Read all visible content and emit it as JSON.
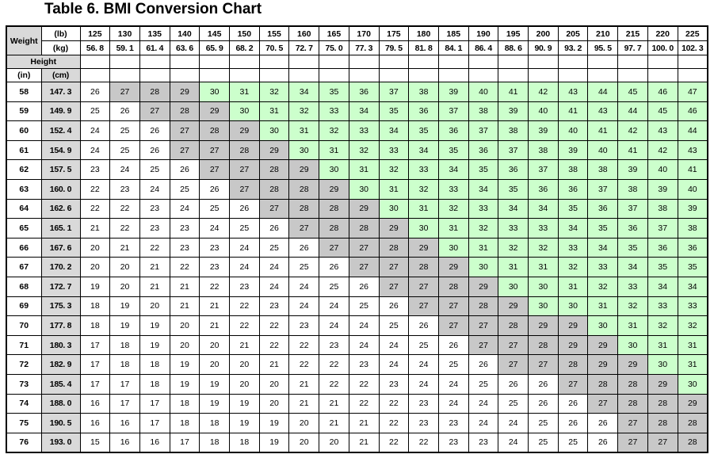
{
  "title": "Table 6. BMI Conversion Chart",
  "header": {
    "weight_label": "Weight",
    "lb_unit": "(lb)",
    "kg_unit": "(kg)",
    "height_label": "Height",
    "in_unit": "(in)",
    "cm_unit": "(cm)"
  },
  "weights_lb": [
    "125",
    "130",
    "135",
    "140",
    "145",
    "150",
    "155",
    "160",
    "165",
    "170",
    "175",
    "180",
    "185",
    "190",
    "195",
    "200",
    "205",
    "210",
    "215",
    "220",
    "225"
  ],
  "weights_kg": [
    "56. 8",
    "59. 1",
    "61. 4",
    "63. 6",
    "65. 9",
    "68. 2",
    "70. 5",
    "72. 7",
    "75. 0",
    "77. 3",
    "79. 5",
    "81. 8",
    "84. 1",
    "86. 4",
    "88. 6",
    "90. 9",
    "93. 2",
    "95. 5",
    "97. 7",
    "100. 0",
    "102. 3"
  ],
  "category_colors": {
    "normal": "#ffffff",
    "overweight": "#c8c8c8",
    "obese": "#ccffcc"
  },
  "rows": [
    {
      "in": "58",
      "cm": "147. 3",
      "values": [
        26,
        27,
        28,
        29,
        30,
        31,
        32,
        34,
        35,
        36,
        37,
        38,
        39,
        40,
        41,
        42,
        43,
        44,
        45,
        46,
        47
      ]
    },
    {
      "in": "59",
      "cm": "149. 9",
      "values": [
        25,
        26,
        27,
        28,
        29,
        30,
        31,
        32,
        33,
        34,
        35,
        36,
        37,
        38,
        39,
        40,
        41,
        43,
        44,
        45,
        46
      ]
    },
    {
      "in": "60",
      "cm": "152. 4",
      "values": [
        24,
        25,
        26,
        27,
        28,
        29,
        30,
        31,
        32,
        33,
        34,
        35,
        36,
        37,
        38,
        39,
        40,
        41,
        42,
        43,
        44
      ]
    },
    {
      "in": "61",
      "cm": "154. 9",
      "values": [
        24,
        25,
        26,
        27,
        27,
        28,
        29,
        30,
        31,
        32,
        33,
        34,
        35,
        36,
        37,
        38,
        39,
        40,
        41,
        42,
        43
      ]
    },
    {
      "in": "62",
      "cm": "157. 5",
      "values": [
        23,
        24,
        25,
        26,
        27,
        27,
        28,
        29,
        30,
        31,
        32,
        33,
        34,
        35,
        36,
        37,
        38,
        38,
        39,
        40,
        41
      ]
    },
    {
      "in": "63",
      "cm": "160. 0",
      "values": [
        22,
        23,
        24,
        25,
        26,
        27,
        28,
        28,
        29,
        30,
        31,
        32,
        33,
        34,
        35,
        36,
        36,
        37,
        38,
        39,
        40
      ]
    },
    {
      "in": "64",
      "cm": "162. 6",
      "values": [
        22,
        22,
        23,
        24,
        25,
        26,
        27,
        28,
        28,
        29,
        30,
        31,
        32,
        33,
        34,
        34,
        35,
        36,
        37,
        38,
        39
      ]
    },
    {
      "in": "65",
      "cm": "165. 1",
      "values": [
        21,
        22,
        23,
        23,
        24,
        25,
        26,
        27,
        28,
        28,
        29,
        30,
        31,
        32,
        33,
        33,
        34,
        35,
        36,
        37,
        38
      ]
    },
    {
      "in": "66",
      "cm": "167. 6",
      "values": [
        20,
        21,
        22,
        23,
        23,
        24,
        25,
        26,
        27,
        27,
        28,
        29,
        30,
        31,
        32,
        32,
        33,
        34,
        35,
        36,
        36
      ]
    },
    {
      "in": "67",
      "cm": "170. 2",
      "values": [
        20,
        20,
        21,
        22,
        23,
        24,
        24,
        25,
        26,
        27,
        27,
        28,
        29,
        30,
        31,
        31,
        32,
        33,
        34,
        35,
        35
      ]
    },
    {
      "in": "68",
      "cm": "172. 7",
      "values": [
        19,
        20,
        21,
        21,
        22,
        23,
        24,
        24,
        25,
        26,
        27,
        27,
        28,
        29,
        30,
        30,
        31,
        32,
        33,
        34,
        34
      ]
    },
    {
      "in": "69",
      "cm": "175. 3",
      "values": [
        18,
        19,
        20,
        21,
        21,
        22,
        23,
        24,
        24,
        25,
        26,
        27,
        27,
        28,
        29,
        30,
        30,
        31,
        32,
        33,
        33
      ]
    },
    {
      "in": "70",
      "cm": "177. 8",
      "values": [
        18,
        19,
        19,
        20,
        21,
        22,
        22,
        23,
        24,
        24,
        25,
        26,
        27,
        27,
        28,
        29,
        29,
        30,
        31,
        32,
        32
      ]
    },
    {
      "in": "71",
      "cm": "180. 3",
      "values": [
        17,
        18,
        19,
        20,
        20,
        21,
        22,
        22,
        23,
        24,
        24,
        25,
        26,
        27,
        27,
        28,
        29,
        29,
        30,
        31,
        31
      ]
    },
    {
      "in": "72",
      "cm": "182. 9",
      "values": [
        17,
        18,
        18,
        19,
        20,
        20,
        21,
        22,
        22,
        23,
        24,
        24,
        25,
        26,
        27,
        27,
        28,
        29,
        29,
        30,
        31
      ]
    },
    {
      "in": "73",
      "cm": "185. 4",
      "values": [
        17,
        17,
        18,
        19,
        19,
        20,
        20,
        21,
        22,
        22,
        23,
        24,
        24,
        25,
        26,
        26,
        27,
        28,
        28,
        29,
        30
      ]
    },
    {
      "in": "74",
      "cm": "188. 0",
      "values": [
        16,
        17,
        17,
        18,
        19,
        19,
        20,
        21,
        21,
        22,
        22,
        23,
        24,
        24,
        25,
        26,
        26,
        27,
        28,
        28,
        29
      ]
    },
    {
      "in": "75",
      "cm": "190. 5",
      "values": [
        16,
        16,
        17,
        18,
        18,
        19,
        19,
        20,
        21,
        21,
        22,
        23,
        23,
        24,
        24,
        25,
        26,
        26,
        27,
        28,
        28
      ]
    },
    {
      "in": "76",
      "cm": "193. 0",
      "values": [
        15,
        16,
        16,
        17,
        18,
        18,
        19,
        20,
        20,
        21,
        22,
        22,
        23,
        23,
        24,
        25,
        25,
        26,
        27,
        27,
        28
      ]
    }
  ]
}
